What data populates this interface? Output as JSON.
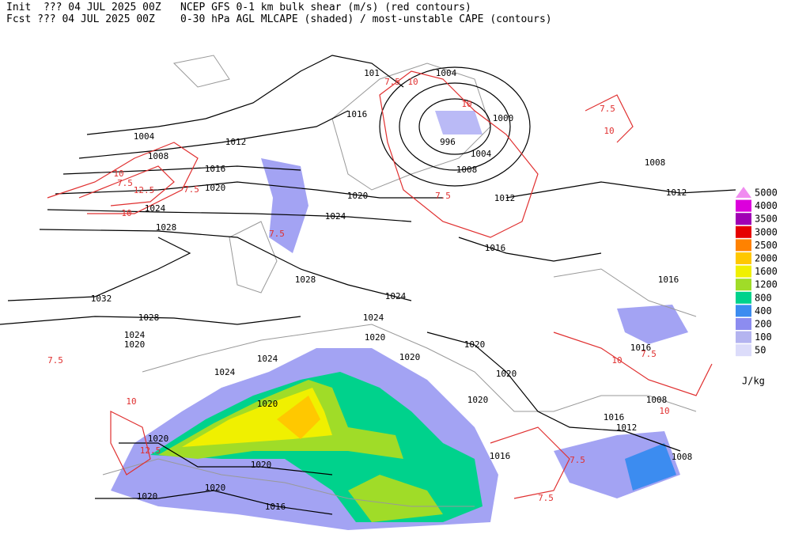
{
  "header": {
    "init": "Init  ??? 04 JUL 2025 00Z",
    "fcst": "Fcst ??? 04 JUL 2025 00Z",
    "line1": "NCEP GFS 0-1 km bulk shear (m/s) (red contours)",
    "line2": "0-30 hPa AGL MLCAPE (shaded) / most-unstable CAPE (contours)"
  },
  "legend": {
    "unit": "J/kg",
    "items": [
      {
        "value": 5000,
        "color": "#f08cf0"
      },
      {
        "value": 4000,
        "color": "#dc00dc"
      },
      {
        "value": 3500,
        "color": "#a000b4"
      },
      {
        "value": 3000,
        "color": "#e60000"
      },
      {
        "value": 2500,
        "color": "#ff8200"
      },
      {
        "value": 2000,
        "color": "#ffc800"
      },
      {
        "value": 1600,
        "color": "#f0f000"
      },
      {
        "value": 1200,
        "color": "#a0dc28"
      },
      {
        "value": 800,
        "color": "#00d28c"
      },
      {
        "value": 400,
        "color": "#3c8cf0"
      },
      {
        "value": 200,
        "color": "#8c8cf0"
      },
      {
        "value": 100,
        "color": "#b4b4f0"
      },
      {
        "value": 50,
        "color": "#dcdcfa"
      }
    ]
  },
  "isobar_labels": [
    "1004",
    "1008",
    "1012",
    "1016",
    "1020",
    "1024",
    "1028",
    "1032",
    "1028",
    "1024",
    "1020",
    "1028",
    "1024",
    "1020",
    "1016",
    "101",
    "1004",
    "1000",
    "996",
    "1004",
    "1008",
    "1012",
    "1016",
    "1008",
    "1012",
    "1016",
    "1024",
    "1024",
    "1020",
    "1020",
    "1020",
    "1020",
    "1020",
    "1016",
    "1008",
    "1016",
    "1012",
    "1008",
    "1016",
    "1024",
    "1024",
    "1020",
    "1020",
    "1020",
    "1020",
    "1020",
    "1016"
  ],
  "shear_labels": [
    "7.5",
    "10",
    "12.5",
    "10",
    "7.5",
    "7.5",
    "10",
    "7.5",
    "10",
    "7.5",
    "7.5",
    "10",
    "7.5",
    "10",
    "12.5",
    "7.5",
    "10",
    "7.5",
    "10",
    "7.5"
  ]
}
